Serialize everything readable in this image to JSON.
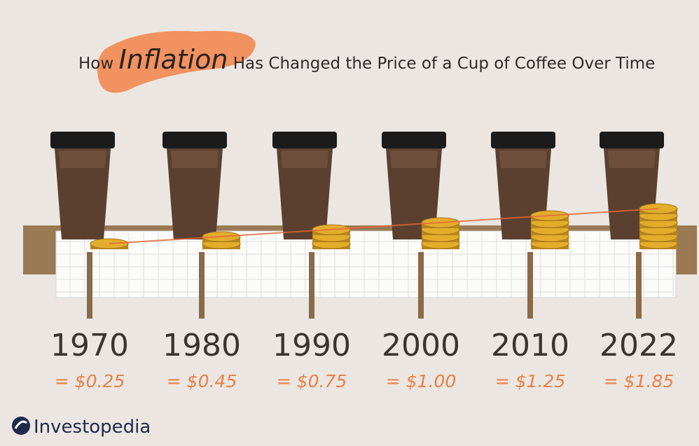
{
  "header": {
    "title_lead": "How",
    "title_highlight": "Inflation",
    "title_rest": "Has Changed the Price of a Cup of Coffee Over Time"
  },
  "items": [
    {
      "year": "1970",
      "price": "= $0.25"
    },
    {
      "year": "1980",
      "price": "= $0.45"
    },
    {
      "year": "1990",
      "price": "= $0.75"
    },
    {
      "year": "2000",
      "price": "= $1.00"
    },
    {
      "year": "2010",
      "price": "= $1.25"
    },
    {
      "year": "2022",
      "price": "= $1.85"
    }
  ],
  "footer": {
    "brand": "Investopedia"
  }
}
